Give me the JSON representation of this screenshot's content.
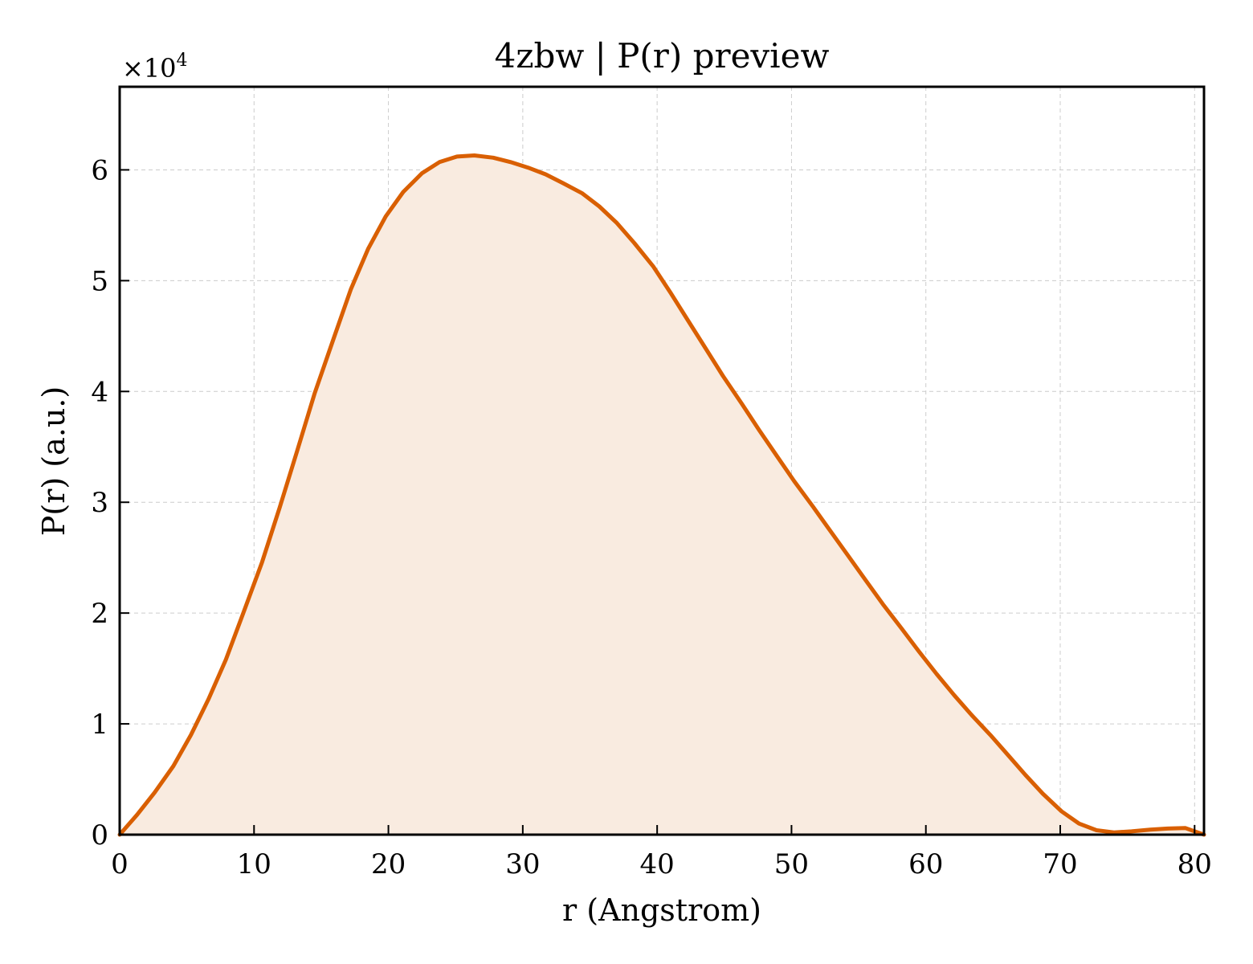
{
  "chart_data": {
    "type": "area",
    "title": "4zbw | P(r) preview",
    "xlabel": "r (Angstrom)",
    "ylabel": "P(r) (a.u.)",
    "y_multiplier_base": "×10",
    "y_multiplier_exp": "4",
    "xlim": [
      0,
      80.7
    ],
    "ylim": [
      0,
      67500
    ],
    "xticks": [
      0,
      10,
      20,
      30,
      40,
      50,
      60,
      70,
      80
    ],
    "xtick_labels": [
      "0",
      "10",
      "20",
      "30",
      "40",
      "50",
      "60",
      "70",
      "80"
    ],
    "yticks": [
      0,
      10000,
      20000,
      30000,
      40000,
      50000,
      60000
    ],
    "ytick_labels": [
      "0",
      "1",
      "2",
      "3",
      "4",
      "5",
      "6"
    ],
    "grid": true,
    "line_color": "#d95f02",
    "fill_color": "#f9ebe0",
    "series": [
      {
        "x": [
          0,
          1.3,
          2.6,
          4.0,
          5.3,
          6.6,
          7.9,
          9.2,
          10.6,
          11.9,
          13.2,
          14.5,
          15.9,
          17.2,
          18.5,
          19.8,
          21.1,
          22.5,
          23.8,
          25.1,
          26.4,
          27.8,
          29.1,
          30.4,
          31.7,
          33.0,
          34.4,
          35.7,
          37.0,
          38.3,
          39.7,
          41.0,
          42.3,
          43.6,
          44.9,
          46.3,
          47.6,
          48.9,
          50.2,
          51.6,
          52.9,
          54.2,
          55.5,
          56.8,
          58.2,
          59.5,
          60.8,
          62.1,
          63.4,
          64.8,
          66.1,
          67.4,
          68.7,
          70.1,
          71.4,
          72.7,
          74.0,
          75.3,
          76.7,
          78.0,
          79.3,
          80.0,
          80.7
        ],
        "y": [
          0,
          1800,
          3800,
          6200,
          9000,
          12200,
          15800,
          20000,
          24600,
          29500,
          34600,
          39800,
          44700,
          49200,
          52900,
          55800,
          58000,
          59700,
          60700,
          61200,
          61300,
          61100,
          60700,
          60200,
          59600,
          58800,
          57900,
          56700,
          55200,
          53400,
          51300,
          48900,
          46400,
          43900,
          41400,
          38900,
          36500,
          34200,
          31900,
          29600,
          27400,
          25200,
          23000,
          20800,
          18600,
          16500,
          14500,
          12600,
          10800,
          9000,
          7200,
          5400,
          3700,
          2100,
          1000,
          400,
          200,
          300,
          450,
          550,
          600,
          300,
          0
        ]
      }
    ]
  }
}
